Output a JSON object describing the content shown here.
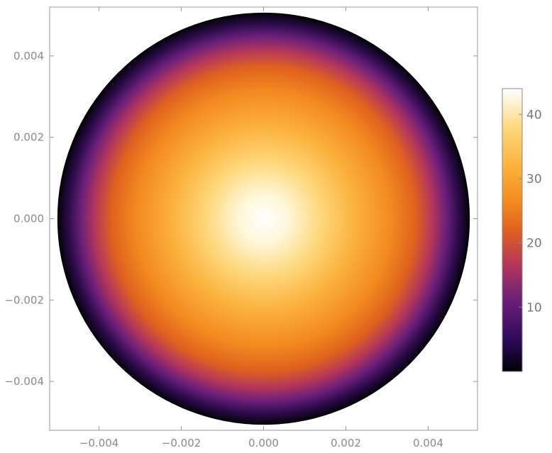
{
  "chart_data": {
    "type": "heatmap",
    "title": "",
    "xlabel": "",
    "ylabel": "",
    "xlim": [
      -0.0052,
      0.0052
    ],
    "ylim": [
      -0.0052,
      0.0052
    ],
    "x_ticks": [
      -0.004,
      -0.002,
      0.0,
      0.002,
      0.004
    ],
    "y_ticks": [
      -0.004,
      -0.002,
      0.0,
      0.002,
      0.004
    ],
    "x_tick_labels": [
      "−0.004",
      "−0.002",
      "0.000",
      "0.002",
      "0.004"
    ],
    "y_tick_labels": [
      "−0.004",
      "−0.002",
      "0.000",
      "0.002",
      "0.004"
    ],
    "domain": {
      "shape": "disk",
      "center": [
        0,
        0
      ],
      "radius": 0.005
    },
    "field": {
      "profile": "radially decreasing",
      "center_value": 44,
      "edge_value": 0
    },
    "colorbar": {
      "range": [
        0,
        44
      ],
      "ticks": [
        10,
        20,
        30,
        40
      ],
      "tick_labels": [
        "10",
        "20",
        "30",
        "40"
      ],
      "colormap": [
        "#000004",
        "#320a5e",
        "#781c6d",
        "#bc3754",
        "#ed6925",
        "#fbb61a",
        "#fcffa4",
        "#ffffff"
      ]
    },
    "grid": false
  }
}
